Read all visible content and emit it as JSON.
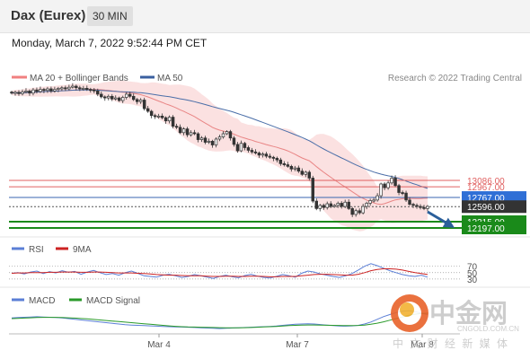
{
  "header": {
    "title": "Dax (Eurex)",
    "timeframe": "30 MIN"
  },
  "timestamp": "Monday, March 7, 2022 9:52:44 PM CET",
  "credit": "Research © 2022 Trading Central",
  "watermark": {
    "name": "中金网",
    "url": "CNGOLD.COM.CN",
    "tagline": "中 文 财 经 新 媒 体"
  },
  "colors": {
    "bands": "#f7c9c9",
    "ma20": "#e98585",
    "ma50": "#4a6ea8",
    "candle": "#333333",
    "level": "#e06060",
    "support": "#1a8a1a",
    "pivot": "#3a66b0",
    "arrow": "#2a5f9a",
    "rsi": "#5b7fd6",
    "rsi_ma": "#cc2222",
    "macd": "#5b7fd6",
    "macd_signal": "#2a9a2a"
  },
  "chart_data": [
    {
      "type": "candlestick",
      "legend": [
        {
          "name": "MA 20 + Bollinger Bands",
          "color": "#f08080"
        },
        {
          "name": "MA 50",
          "color": "#3a5f9f"
        }
      ],
      "x_ticks": [
        "Mar 4",
        "Mar 7",
        "Mar 8"
      ],
      "ylim": [
        12130,
        14850
      ],
      "close": [
        14720,
        14735,
        14710,
        14740,
        14760,
        14720,
        14780,
        14750,
        14790,
        14770,
        14800,
        14760,
        14790,
        14810,
        14820,
        14800,
        14830,
        14850,
        14820,
        14800,
        14810,
        14790,
        14780,
        14760,
        14700,
        14650,
        14630,
        14660,
        14610,
        14630,
        14580,
        14640,
        14700,
        14660,
        14600,
        14560,
        14590,
        14430,
        14380,
        14300,
        14280,
        14290,
        14260,
        14200,
        14270,
        14100,
        14080,
        13980,
        14050,
        13940,
        13980,
        13960,
        13850,
        13880,
        13800,
        13820,
        13750,
        13860,
        13900,
        13960,
        14000,
        13880,
        13760,
        13640,
        13780,
        13700,
        13650,
        13620,
        13600,
        13560,
        13580,
        13540,
        13520,
        13500,
        13470,
        13400,
        13380,
        13350,
        13300,
        13320,
        13260,
        13200,
        13240,
        13130,
        12700,
        12560,
        12620,
        12580,
        12650,
        12600,
        12620,
        12660,
        12600,
        12680,
        12560,
        12450,
        12520,
        12480,
        12600,
        12660,
        12710,
        12720,
        12800,
        13020,
        12950,
        13040,
        13130,
        12990,
        12860,
        12850,
        12720,
        12640,
        12620,
        12600,
        12580,
        12560,
        12600
      ],
      "levels": [
        {
          "label": "13086.00",
          "value": 13086,
          "kind": "resistance"
        },
        {
          "label": "12967.00",
          "value": 12967,
          "kind": "resistance"
        },
        {
          "label": "12767.00",
          "value": 12767,
          "kind": "pivot"
        },
        {
          "label": "12596.00",
          "value": 12596,
          "kind": "last"
        },
        {
          "label": "12315.00",
          "value": 12315,
          "kind": "support"
        },
        {
          "label": "12197.00",
          "value": 12197,
          "kind": "support"
        }
      ]
    },
    {
      "type": "line",
      "legend": [
        {
          "name": "RSI",
          "color": "#5b7fd6"
        },
        {
          "name": "9MA",
          "color": "#cc2222"
        }
      ],
      "y_ticks": [
        70,
        50,
        30
      ],
      "ylim": [
        10,
        100
      ],
      "series": [
        {
          "name": "RSI",
          "values": [
            48,
            50,
            46,
            52,
            55,
            47,
            53,
            49,
            56,
            51,
            54,
            45,
            52,
            57,
            50,
            44,
            47,
            42,
            50,
            55,
            48,
            40,
            38,
            36,
            42,
            45,
            40,
            35,
            38,
            44,
            40,
            36,
            32,
            38,
            42,
            37,
            34,
            41,
            45,
            39,
            35,
            33,
            38,
            44,
            40,
            36,
            48,
            55,
            52,
            46,
            42,
            38,
            35,
            40,
            47,
            58,
            70,
            78,
            72,
            64,
            56,
            50,
            44,
            40,
            38,
            42,
            36
          ]
        },
        {
          "name": "9MA",
          "values": [
            48,
            49,
            49,
            50,
            50,
            50,
            51,
            51,
            52,
            52,
            52,
            51,
            51,
            52,
            52,
            51,
            50,
            49,
            49,
            49,
            48,
            47,
            46,
            44,
            43,
            42,
            42,
            41,
            40,
            40,
            40,
            39,
            38,
            38,
            39,
            39,
            38,
            38,
            39,
            39,
            38,
            37,
            37,
            38,
            38,
            38,
            40,
            42,
            44,
            45,
            45,
            44,
            43,
            42,
            42,
            45,
            50,
            56,
            60,
            62,
            62,
            61,
            58,
            54,
            50,
            47,
            44
          ]
        }
      ]
    },
    {
      "type": "line",
      "legend": [
        {
          "name": "MACD",
          "color": "#5b7fd6"
        },
        {
          "name": "MACD Signal",
          "color": "#2a9a2a"
        }
      ],
      "ylim": [
        -100,
        100
      ],
      "series": [
        {
          "name": "MACD",
          "values": [
            5,
            8,
            10,
            12,
            14,
            12,
            10,
            8,
            5,
            0,
            -5,
            -10,
            -15,
            -20,
            -25,
            -30,
            -35,
            -40,
            -45,
            -48,
            -50,
            -52,
            -54,
            -56,
            -58,
            -60,
            -62,
            -63,
            -64,
            -66,
            -68,
            -70,
            -72,
            -74,
            -72,
            -70,
            -68,
            -66,
            -64,
            -62,
            -60,
            -58,
            -55,
            -50,
            -46,
            -42,
            -40,
            -38,
            -40,
            -44,
            -48,
            -52,
            -55,
            -56,
            -54,
            -50,
            -40,
            -25,
            -5,
            15,
            30,
            45,
            55,
            58,
            52,
            40,
            30
          ]
        },
        {
          "name": "MACD Signal",
          "values": [
            0,
            2,
            4,
            6,
            8,
            9,
            9,
            9,
            8,
            6,
            4,
            1,
            -2,
            -6,
            -10,
            -14,
            -18,
            -22,
            -26,
            -30,
            -34,
            -38,
            -42,
            -46,
            -50,
            -54,
            -57,
            -60,
            -62,
            -63,
            -64,
            -65,
            -66,
            -67,
            -68,
            -68,
            -68,
            -67,
            -66,
            -64,
            -62,
            -60,
            -58,
            -55,
            -52,
            -50,
            -48,
            -47,
            -47,
            -48,
            -49,
            -50,
            -51,
            -52,
            -52,
            -51,
            -48,
            -42,
            -34,
            -24,
            -12,
            0,
            12,
            24,
            33,
            38,
            40
          ]
        }
      ]
    }
  ]
}
